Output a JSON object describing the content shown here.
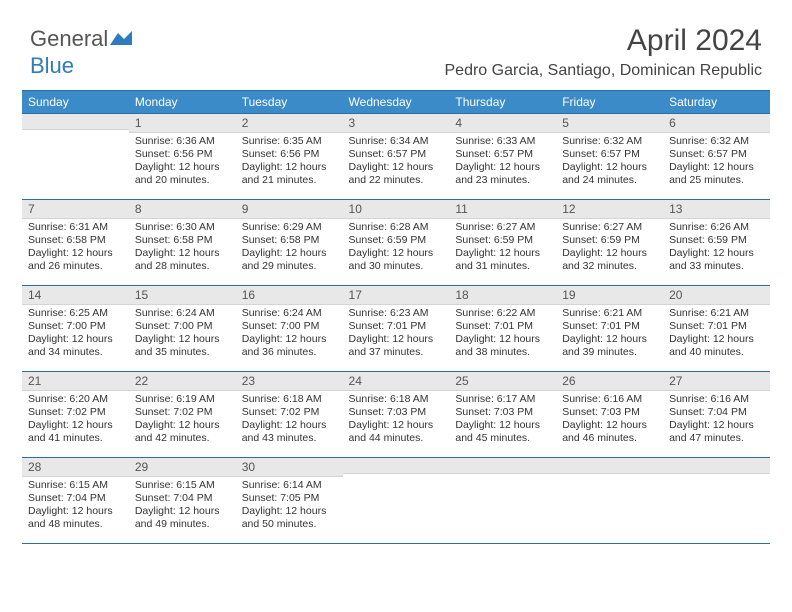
{
  "logo": {
    "text1": "General",
    "text2": "Blue"
  },
  "title": "April 2024",
  "subtitle": "Pedro Garcia, Santiago, Dominican Republic",
  "colors": {
    "header_bg": "#3b8bc9",
    "header_text": "#ffffff",
    "border": "#2a6fa5",
    "daynum_bg": "#e8e8e8",
    "body_text": "#333333",
    "logo_blue": "#2f7bbf"
  },
  "weekdays": [
    "Sunday",
    "Monday",
    "Tuesday",
    "Wednesday",
    "Thursday",
    "Friday",
    "Saturday"
  ],
  "weeks": [
    [
      {
        "n": "",
        "lines": []
      },
      {
        "n": "1",
        "lines": [
          "Sunrise: 6:36 AM",
          "Sunset: 6:56 PM",
          "Daylight: 12 hours and 20 minutes."
        ]
      },
      {
        "n": "2",
        "lines": [
          "Sunrise: 6:35 AM",
          "Sunset: 6:56 PM",
          "Daylight: 12 hours and 21 minutes."
        ]
      },
      {
        "n": "3",
        "lines": [
          "Sunrise: 6:34 AM",
          "Sunset: 6:57 PM",
          "Daylight: 12 hours and 22 minutes."
        ]
      },
      {
        "n": "4",
        "lines": [
          "Sunrise: 6:33 AM",
          "Sunset: 6:57 PM",
          "Daylight: 12 hours and 23 minutes."
        ]
      },
      {
        "n": "5",
        "lines": [
          "Sunrise: 6:32 AM",
          "Sunset: 6:57 PM",
          "Daylight: 12 hours and 24 minutes."
        ]
      },
      {
        "n": "6",
        "lines": [
          "Sunrise: 6:32 AM",
          "Sunset: 6:57 PM",
          "Daylight: 12 hours and 25 minutes."
        ]
      }
    ],
    [
      {
        "n": "7",
        "lines": [
          "Sunrise: 6:31 AM",
          "Sunset: 6:58 PM",
          "Daylight: 12 hours and 26 minutes."
        ]
      },
      {
        "n": "8",
        "lines": [
          "Sunrise: 6:30 AM",
          "Sunset: 6:58 PM",
          "Daylight: 12 hours and 28 minutes."
        ]
      },
      {
        "n": "9",
        "lines": [
          "Sunrise: 6:29 AM",
          "Sunset: 6:58 PM",
          "Daylight: 12 hours and 29 minutes."
        ]
      },
      {
        "n": "10",
        "lines": [
          "Sunrise: 6:28 AM",
          "Sunset: 6:59 PM",
          "Daylight: 12 hours and 30 minutes."
        ]
      },
      {
        "n": "11",
        "lines": [
          "Sunrise: 6:27 AM",
          "Sunset: 6:59 PM",
          "Daylight: 12 hours and 31 minutes."
        ]
      },
      {
        "n": "12",
        "lines": [
          "Sunrise: 6:27 AM",
          "Sunset: 6:59 PM",
          "Daylight: 12 hours and 32 minutes."
        ]
      },
      {
        "n": "13",
        "lines": [
          "Sunrise: 6:26 AM",
          "Sunset: 6:59 PM",
          "Daylight: 12 hours and 33 minutes."
        ]
      }
    ],
    [
      {
        "n": "14",
        "lines": [
          "Sunrise: 6:25 AM",
          "Sunset: 7:00 PM",
          "Daylight: 12 hours and 34 minutes."
        ]
      },
      {
        "n": "15",
        "lines": [
          "Sunrise: 6:24 AM",
          "Sunset: 7:00 PM",
          "Daylight: 12 hours and 35 minutes."
        ]
      },
      {
        "n": "16",
        "lines": [
          "Sunrise: 6:24 AM",
          "Sunset: 7:00 PM",
          "Daylight: 12 hours and 36 minutes."
        ]
      },
      {
        "n": "17",
        "lines": [
          "Sunrise: 6:23 AM",
          "Sunset: 7:01 PM",
          "Daylight: 12 hours and 37 minutes."
        ]
      },
      {
        "n": "18",
        "lines": [
          "Sunrise: 6:22 AM",
          "Sunset: 7:01 PM",
          "Daylight: 12 hours and 38 minutes."
        ]
      },
      {
        "n": "19",
        "lines": [
          "Sunrise: 6:21 AM",
          "Sunset: 7:01 PM",
          "Daylight: 12 hours and 39 minutes."
        ]
      },
      {
        "n": "20",
        "lines": [
          "Sunrise: 6:21 AM",
          "Sunset: 7:01 PM",
          "Daylight: 12 hours and 40 minutes."
        ]
      }
    ],
    [
      {
        "n": "21",
        "lines": [
          "Sunrise: 6:20 AM",
          "Sunset: 7:02 PM",
          "Daylight: 12 hours and 41 minutes."
        ]
      },
      {
        "n": "22",
        "lines": [
          "Sunrise: 6:19 AM",
          "Sunset: 7:02 PM",
          "Daylight: 12 hours and 42 minutes."
        ]
      },
      {
        "n": "23",
        "lines": [
          "Sunrise: 6:18 AM",
          "Sunset: 7:02 PM",
          "Daylight: 12 hours and 43 minutes."
        ]
      },
      {
        "n": "24",
        "lines": [
          "Sunrise: 6:18 AM",
          "Sunset: 7:03 PM",
          "Daylight: 12 hours and 44 minutes."
        ]
      },
      {
        "n": "25",
        "lines": [
          "Sunrise: 6:17 AM",
          "Sunset: 7:03 PM",
          "Daylight: 12 hours and 45 minutes."
        ]
      },
      {
        "n": "26",
        "lines": [
          "Sunrise: 6:16 AM",
          "Sunset: 7:03 PM",
          "Daylight: 12 hours and 46 minutes."
        ]
      },
      {
        "n": "27",
        "lines": [
          "Sunrise: 6:16 AM",
          "Sunset: 7:04 PM",
          "Daylight: 12 hours and 47 minutes."
        ]
      }
    ],
    [
      {
        "n": "28",
        "lines": [
          "Sunrise: 6:15 AM",
          "Sunset: 7:04 PM",
          "Daylight: 12 hours and 48 minutes."
        ]
      },
      {
        "n": "29",
        "lines": [
          "Sunrise: 6:15 AM",
          "Sunset: 7:04 PM",
          "Daylight: 12 hours and 49 minutes."
        ]
      },
      {
        "n": "30",
        "lines": [
          "Sunrise: 6:14 AM",
          "Sunset: 7:05 PM",
          "Daylight: 12 hours and 50 minutes."
        ]
      },
      {
        "n": "",
        "lines": []
      },
      {
        "n": "",
        "lines": []
      },
      {
        "n": "",
        "lines": []
      },
      {
        "n": "",
        "lines": []
      }
    ]
  ]
}
